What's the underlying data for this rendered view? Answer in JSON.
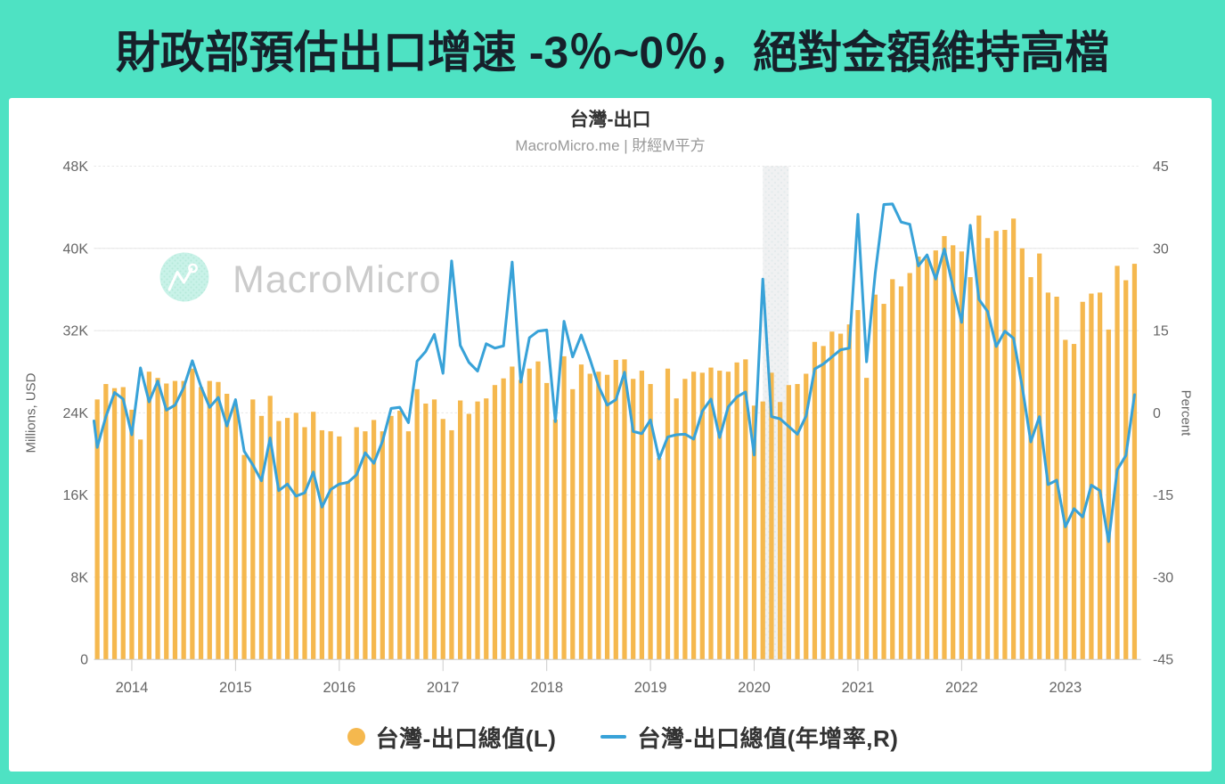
{
  "banner": {
    "title": "財政部預估出口增速 -3％~0％，絕對金額維持高檔"
  },
  "chart": {
    "title": "台灣-出口",
    "subtitle": "MacroMicro.me | 財經M平方",
    "watermark_text": "MacroMicro",
    "axes": {
      "left": {
        "title": "Millions, USD",
        "tick_labels": [
          "48K",
          "40K",
          "32K",
          "24K",
          "16K",
          "8K",
          "0"
        ]
      },
      "right": {
        "title": "Percent",
        "tick_labels": [
          "45",
          "30",
          "15",
          "0",
          "-15",
          "-30",
          "-45"
        ]
      },
      "x": {
        "tick_labels": [
          "2014",
          "2015",
          "2016",
          "2017",
          "2018",
          "2019",
          "2020",
          "2021",
          "2022",
          "2023"
        ]
      }
    },
    "legend": [
      {
        "label": "台灣-出口總值(L)",
        "marker": "circle"
      },
      {
        "label": "台灣-出口總值(年增率,R)",
        "marker": "line"
      }
    ]
  },
  "colors": {
    "background": "#4ee2c3",
    "banner_text": "#16202a",
    "bar": "#f5b84e",
    "line": "#38a2d8",
    "grid": "#e7e7e7",
    "grid_dash": "#e7e7e7",
    "axis_line": "#cccccc",
    "tick": "#cccccc",
    "band_bg": "#f0f1f2",
    "band_dot": "#e3eaeb",
    "title_text": "#333333",
    "axis_text": "#666666",
    "subtitle_text": "#999999",
    "watermark_text_color": "#cbcbcb",
    "watermark_badge": "#c9f2e8",
    "watermark_badge_dot": "#b5ead9"
  },
  "chart_data": {
    "type": "combo-column-line",
    "title": "台灣-出口",
    "x_start_month": "2013-09",
    "x_end_month": "2023-09",
    "months_count": 121,
    "left_axis": {
      "label": "Millions, USD",
      "range": [
        0,
        48000
      ],
      "tick_step": 8000
    },
    "right_axis": {
      "label": "Percent",
      "range": [
        -45,
        45
      ],
      "tick_step": 15
    },
    "grid": "horizontal-only",
    "legend_position": "bottom-center",
    "recession_band_months": [
      "2020-02",
      "2020-04"
    ],
    "series": [
      {
        "name": "台灣-出口總值(L)",
        "type": "column",
        "axis": "left",
        "unit": "millions USD",
        "values": [
          25300,
          26800,
          26400,
          26500,
          24300,
          21400,
          28000,
          27400,
          26850,
          27100,
          27100,
          28300,
          26500,
          27100,
          27000,
          25850,
          24800,
          19900,
          25300,
          23700,
          25650,
          23200,
          23500,
          24000,
          22600,
          24100,
          22300,
          22200,
          21700,
          17350,
          22600,
          22200,
          23300,
          22200,
          23700,
          24200,
          22200,
          26300,
          24900,
          25300,
          23400,
          22300,
          25200,
          23900,
          25100,
          25400,
          26700,
          27350,
          28500,
          27200,
          28300,
          29000,
          26900,
          23350,
          29500,
          26300,
          28700,
          27800,
          28000,
          27700,
          29150,
          29200,
          27300,
          28100,
          26800,
          19600,
          28300,
          25400,
          27300,
          28000,
          27900,
          28400,
          28100,
          28000,
          28900,
          29200,
          24700,
          25100,
          27900,
          25050,
          26700,
          26800,
          27800,
          30900,
          30500,
          31900,
          31700,
          32600,
          34000,
          27400,
          35500,
          34600,
          37000,
          36300,
          37600,
          39200,
          39000,
          39800,
          41200,
          40300,
          39700,
          37200,
          43200,
          41000,
          41700,
          41800,
          42900,
          40000,
          37200,
          39500,
          35700,
          35300,
          31100,
          30700,
          34800,
          35600,
          35700,
          32100,
          38300,
          36900,
          38500
        ]
      },
      {
        "name": "台灣-出口總值(年增率,R)",
        "type": "line",
        "axis": "right",
        "unit": "percent",
        "pre_point": {
          "month": "2013-08",
          "value": 6.5
        },
        "values": [
          -6.3,
          -0.7,
          3.7,
          2.5,
          -4.0,
          8.2,
          2.0,
          5.8,
          0.5,
          1.4,
          4.6,
          9.5,
          4.8,
          1.0,
          2.8,
          -2.4,
          2.4,
          -7.0,
          -9.5,
          -12.4,
          -4.6,
          -14.2,
          -13.0,
          -15.2,
          -14.6,
          -10.8,
          -17.2,
          -14.0,
          -13.0,
          -12.7,
          -11.3,
          -7.3,
          -9.2,
          -5.2,
          0.8,
          1.0,
          -1.8,
          9.4,
          11.2,
          14.3,
          7.2,
          27.7,
          12.3,
          9.2,
          7.6,
          12.6,
          11.8,
          12.2,
          27.5,
          5.6,
          13.7,
          14.9,
          15.1,
          -1.6,
          16.7,
          10.2,
          14.2,
          9.8,
          4.9,
          1.4,
          2.4,
          7.4,
          -3.4,
          -3.8,
          -1.3,
          -8.4,
          -4.4,
          -4.0,
          -3.9,
          -4.8,
          0.3,
          2.5,
          -4.5,
          1.1,
          2.9,
          3.8,
          -7.7,
          24.4,
          -0.7,
          -1.1,
          -2.5,
          -3.9,
          -0.6,
          8.0,
          8.9,
          10.2,
          11.5,
          11.8,
          36.2,
          9.3,
          25.4,
          38.0,
          38.1,
          34.8,
          34.4,
          26.8,
          28.8,
          24.4,
          29.9,
          23.0,
          16.5,
          34.2,
          20.7,
          18.5,
          12.1,
          14.9,
          13.6,
          4.8,
          -5.3,
          -0.7,
          -13.1,
          -12.3,
          -20.8,
          -17.5,
          -19.0,
          -13.2,
          -14.2,
          -23.5,
          -10.4,
          -7.8,
          3.3
        ]
      }
    ]
  }
}
